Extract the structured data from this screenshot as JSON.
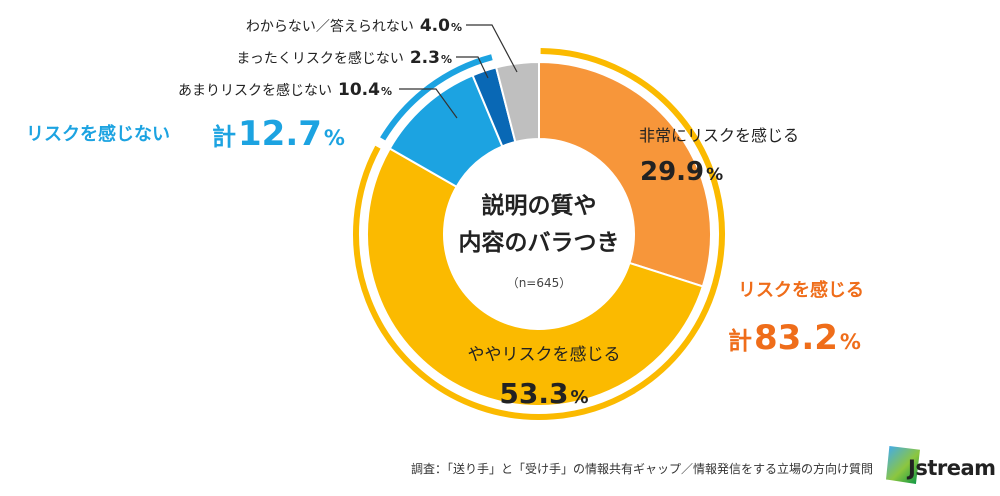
{
  "chart_data": {
    "type": "donut",
    "title_line1": "説明の質や",
    "title_line2": "内容のバラつき",
    "sample_size": "（n=645）",
    "slices": [
      {
        "label": "非常にリスクを感じる",
        "value": 29.9,
        "value_text": "29.9",
        "color": "#F7963A"
      },
      {
        "label": "ややリスクを感じる",
        "value": 53.3,
        "value_text": "53.3",
        "color": "#FBBA00"
      },
      {
        "label": "あまりリスクを感じない",
        "value": 10.4,
        "value_text": "10.4",
        "color": "#1CA3E1"
      },
      {
        "label": "まったくリスクを感じない",
        "value": 2.3,
        "value_text": "2.3",
        "color": "#0968B5"
      },
      {
        "label": "わからない／答えられない",
        "value": 4.0,
        "value_text": "4.0",
        "color": "#BFBFBF"
      }
    ],
    "percent_sign": "%",
    "groups": {
      "risk": {
        "label": "リスクを感じる",
        "total_prefix": "計",
        "total": "83.2",
        "color": "#EF6D1A",
        "arc_color": "#FBBA00"
      },
      "no_risk": {
        "label": "リスクを感じない",
        "total_prefix": "計",
        "total": "12.7",
        "color": "#1CA3E1",
        "arc_color": "#1CA3E1"
      }
    }
  },
  "footer": {
    "source": "調査：「送り手」と「受け手」の情報共有ギャップ／情報発信をする立場の方向け質問",
    "logo_text": "Jstream"
  }
}
